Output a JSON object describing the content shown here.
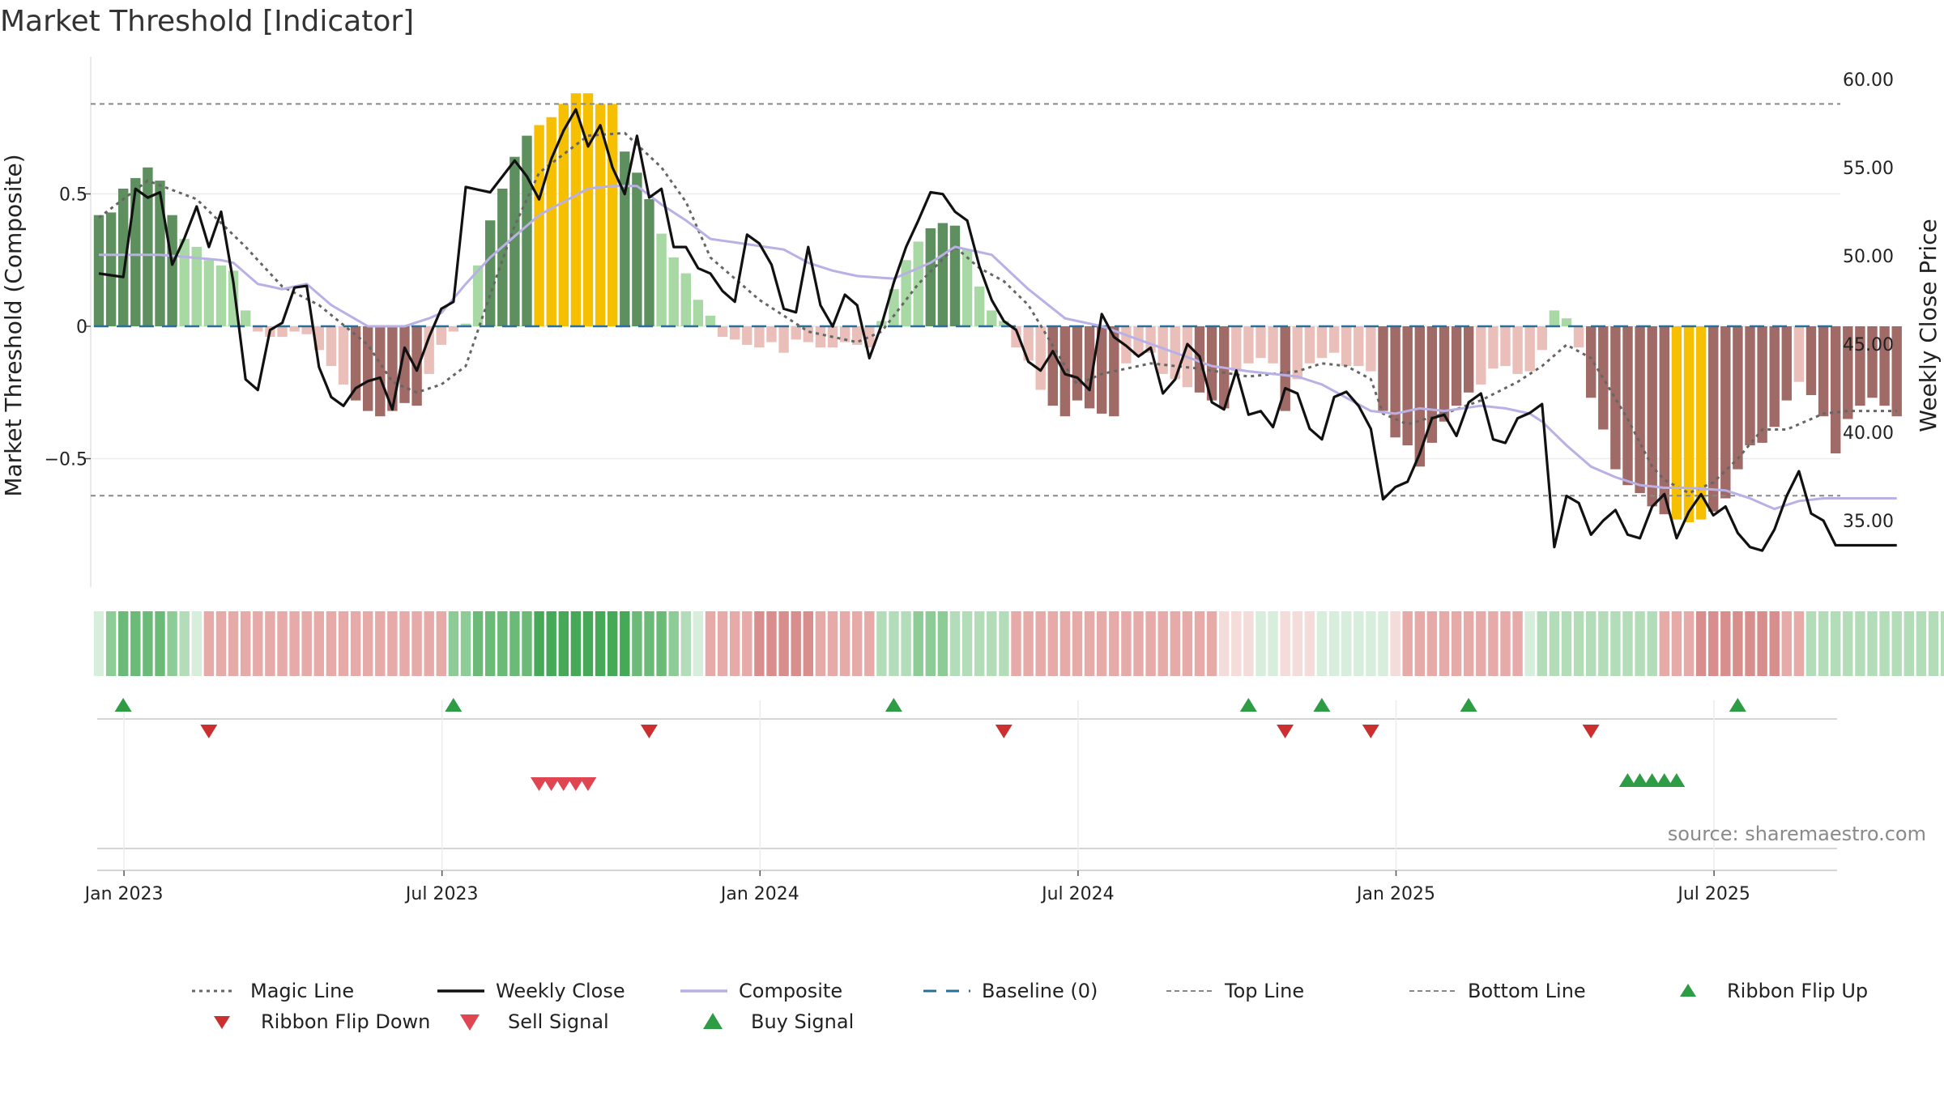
{
  "colors": {
    "weekly_close": "#111111",
    "magic_line": "#666666",
    "composite": "#b9b0e6",
    "baseline": "#2a6f97",
    "top_bottom": "#888888",
    "bar_pos_strong": "#5e8f5e",
    "bar_pos_weak": "#a8d8a3",
    "bar_neg_strong": "#a06a66",
    "bar_neg_weak": "#ebbfb9",
    "bar_extreme": "#f6c000",
    "ribbon_green": "#45a957",
    "ribbon_red": "#d36a69",
    "buy": "#2e9b45",
    "sell": "#d23a3e",
    "flip_down": "#cc2f2f"
  },
  "chart_data": {
    "type": "line",
    "title": "Market Threshold [Indicator]",
    "ylabel_left": "Market Threshold (Composite)",
    "ylabel_right": "Weekly Close Price",
    "left_yticks": [
      {
        "value": 0.5,
        "label": "0.5"
      },
      {
        "value": 0,
        "label": "0"
      },
      {
        "value": -0.5,
        "label": "−0.5"
      }
    ],
    "right_yticks": [
      {
        "value": 60,
        "label": "60.00"
      },
      {
        "value": 55,
        "label": "55.00"
      },
      {
        "value": 50,
        "label": "50.00"
      },
      {
        "value": 45,
        "label": "45.00"
      },
      {
        "value": 40,
        "label": "40.00"
      },
      {
        "value": 35,
        "label": "35.00"
      }
    ],
    "xticks": [
      {
        "week": 1,
        "label": "Jan 2023"
      },
      {
        "week": 27,
        "label": "Jul 2023"
      },
      {
        "week": 53,
        "label": "Jan 2024"
      },
      {
        "week": 79,
        "label": "Jul 2024"
      },
      {
        "week": 105,
        "label": "Jan 2025"
      },
      {
        "week": 131,
        "label": "Jul 2025"
      }
    ],
    "ylim_left": [
      -0.98,
      0.98
    ],
    "ylim_right": [
      29,
      61
    ],
    "top_line": 0.84,
    "bottom_line": -0.64,
    "baseline": 0,
    "weekly_close_keys": [
      [
        0,
        49.0
      ],
      [
        2,
        48.8
      ],
      [
        3,
        53.8
      ],
      [
        4,
        53.3
      ],
      [
        5,
        53.6
      ],
      [
        6,
        49.5
      ],
      [
        7,
        51.0
      ],
      [
        8,
        52.8
      ],
      [
        9,
        50.5
      ],
      [
        10,
        52.5
      ],
      [
        11,
        48.5
      ],
      [
        12,
        43.0
      ],
      [
        13,
        42.4
      ],
      [
        14,
        45.8
      ],
      [
        15,
        46.2
      ],
      [
        16,
        48.2
      ],
      [
        17,
        48.3
      ],
      [
        18,
        43.7
      ],
      [
        19,
        42.0
      ],
      [
        20,
        41.5
      ],
      [
        21,
        42.5
      ],
      [
        22,
        42.9
      ],
      [
        23,
        43.1
      ],
      [
        24,
        41.3
      ],
      [
        25,
        44.8
      ],
      [
        26,
        43.5
      ],
      [
        27,
        45.4
      ],
      [
        28,
        47.0
      ],
      [
        29,
        47.4
      ],
      [
        30,
        53.9
      ],
      [
        32,
        53.6
      ],
      [
        33,
        54.5
      ],
      [
        34,
        55.4
      ],
      [
        35,
        54.5
      ],
      [
        36,
        53.2
      ],
      [
        37,
        55.5
      ],
      [
        38,
        57.1
      ],
      [
        39,
        58.3
      ],
      [
        40,
        56.2
      ],
      [
        41,
        57.4
      ],
      [
        42,
        55.0
      ],
      [
        43,
        53.5
      ],
      [
        44,
        56.8
      ],
      [
        45,
        53.3
      ],
      [
        46,
        53.8
      ],
      [
        47,
        50.5
      ],
      [
        48,
        50.5
      ],
      [
        49,
        49.3
      ],
      [
        50,
        49.0
      ],
      [
        51,
        48.0
      ],
      [
        52,
        47.4
      ],
      [
        53,
        51.2
      ],
      [
        54,
        50.7
      ],
      [
        55,
        49.5
      ],
      [
        56,
        47.0
      ],
      [
        57,
        46.8
      ],
      [
        58,
        50.5
      ],
      [
        59,
        47.2
      ],
      [
        60,
        46.0
      ],
      [
        61,
        47.8
      ],
      [
        62,
        47.2
      ],
      [
        63,
        44.2
      ],
      [
        64,
        46.1
      ],
      [
        65,
        48.5
      ],
      [
        66,
        50.5
      ],
      [
        67,
        52.0
      ],
      [
        68,
        53.6
      ],
      [
        69,
        53.5
      ],
      [
        70,
        52.5
      ],
      [
        71,
        52.0
      ],
      [
        72,
        49.4
      ],
      [
        73,
        47.5
      ],
      [
        74,
        46.3
      ],
      [
        75,
        45.8
      ],
      [
        76,
        44.0
      ],
      [
        77,
        43.5
      ],
      [
        78,
        44.6
      ],
      [
        79,
        43.3
      ],
      [
        80,
        43.1
      ],
      [
        81,
        42.4
      ],
      [
        82,
        46.7
      ],
      [
        83,
        45.4
      ],
      [
        84,
        44.9
      ],
      [
        85,
        44.3
      ],
      [
        86,
        44.8
      ],
      [
        87,
        42.2
      ],
      [
        88,
        43.0
      ],
      [
        89,
        45.0
      ],
      [
        90,
        44.3
      ],
      [
        91,
        41.7
      ],
      [
        92,
        41.3
      ],
      [
        93,
        43.5
      ],
      [
        94,
        41.0
      ],
      [
        95,
        41.2
      ],
      [
        96,
        40.3
      ],
      [
        97,
        42.5
      ],
      [
        98,
        42.2
      ],
      [
        99,
        40.2
      ],
      [
        100,
        39.6
      ],
      [
        101,
        42.0
      ],
      [
        102,
        42.3
      ],
      [
        103,
        41.5
      ],
      [
        104,
        40.2
      ],
      [
        105,
        36.2
      ],
      [
        106,
        36.9
      ],
      [
        107,
        37.2
      ],
      [
        108,
        38.8
      ],
      [
        109,
        40.8
      ],
      [
        110,
        41.0
      ],
      [
        111,
        39.8
      ],
      [
        112,
        41.7
      ],
      [
        113,
        42.2
      ],
      [
        114,
        39.6
      ],
      [
        115,
        39.4
      ],
      [
        116,
        40.8
      ],
      [
        117,
        41.1
      ],
      [
        118,
        41.6
      ],
      [
        119,
        33.5
      ],
      [
        120,
        36.4
      ],
      [
        121,
        36.0
      ],
      [
        122,
        34.2
      ],
      [
        123,
        35.0
      ],
      [
        124,
        35.6
      ],
      [
        125,
        34.2
      ],
      [
        126,
        34.0
      ],
      [
        127,
        35.8
      ],
      [
        128,
        36.5
      ],
      [
        129,
        34.0
      ],
      [
        130,
        35.5
      ],
      [
        131,
        36.5
      ],
      [
        132,
        35.3
      ],
      [
        133,
        35.8
      ],
      [
        134,
        34.3
      ],
      [
        135,
        33.5
      ],
      [
        136,
        33.3
      ],
      [
        137,
        34.5
      ],
      [
        138,
        36.4
      ],
      [
        139,
        37.8
      ],
      [
        140,
        35.4
      ],
      [
        141,
        35.0
      ],
      [
        142,
        33.6
      ]
    ],
    "magic_line_keys": [
      [
        0,
        0.41
      ],
      [
        4,
        0.55
      ],
      [
        8,
        0.48
      ],
      [
        12,
        0.3
      ],
      [
        15,
        0.15
      ],
      [
        18,
        0.08
      ],
      [
        22,
        -0.07
      ],
      [
        24,
        -0.21
      ],
      [
        26,
        -0.25
      ],
      [
        28,
        -0.22
      ],
      [
        30,
        -0.15
      ],
      [
        32,
        0.12
      ],
      [
        34,
        0.38
      ],
      [
        36,
        0.58
      ],
      [
        40,
        0.72
      ],
      [
        43,
        0.73
      ],
      [
        46,
        0.6
      ],
      [
        48,
        0.47
      ],
      [
        50,
        0.26
      ],
      [
        54,
        0.1
      ],
      [
        58,
        -0.02
      ],
      [
        62,
        -0.06
      ],
      [
        64,
        -0.02
      ],
      [
        67,
        0.16
      ],
      [
        70,
        0.3
      ],
      [
        72,
        0.22
      ],
      [
        74,
        0.17
      ],
      [
        76,
        0.08
      ],
      [
        79,
        -0.15
      ],
      [
        80,
        -0.22
      ],
      [
        82,
        -0.18
      ],
      [
        86,
        -0.14
      ],
      [
        90,
        -0.16
      ],
      [
        94,
        -0.19
      ],
      [
        98,
        -0.17
      ],
      [
        100,
        -0.14
      ],
      [
        102,
        -0.15
      ],
      [
        104,
        -0.2
      ],
      [
        105,
        -0.33
      ],
      [
        107,
        -0.37
      ],
      [
        110,
        -0.33
      ],
      [
        113,
        -0.28
      ],
      [
        116,
        -0.21
      ],
      [
        118,
        -0.15
      ],
      [
        120,
        -0.07
      ],
      [
        122,
        -0.12
      ],
      [
        125,
        -0.35
      ],
      [
        127,
        -0.53
      ],
      [
        128,
        -0.58
      ],
      [
        130,
        -0.63
      ],
      [
        132,
        -0.59
      ],
      [
        134,
        -0.5
      ],
      [
        136,
        -0.39
      ],
      [
        138,
        -0.39
      ],
      [
        141,
        -0.33
      ],
      [
        143,
        -0.32
      ]
    ],
    "composite_keys": [
      [
        0,
        0.27
      ],
      [
        5,
        0.27
      ],
      [
        10,
        0.25
      ],
      [
        11,
        0.24
      ],
      [
        13,
        0.16
      ],
      [
        15,
        0.14
      ],
      [
        17,
        0.16
      ],
      [
        19,
        0.08
      ],
      [
        22,
        0.0
      ],
      [
        25,
        0.0
      ],
      [
        27,
        0.03
      ],
      [
        28,
        0.05
      ],
      [
        30,
        0.16
      ],
      [
        32,
        0.26
      ],
      [
        34,
        0.34
      ],
      [
        36,
        0.42
      ],
      [
        38,
        0.47
      ],
      [
        40,
        0.52
      ],
      [
        42,
        0.53
      ],
      [
        44,
        0.53
      ],
      [
        46,
        0.46
      ],
      [
        48,
        0.4
      ],
      [
        50,
        0.33
      ],
      [
        53,
        0.31
      ],
      [
        56,
        0.29
      ],
      [
        58,
        0.24
      ],
      [
        60,
        0.21
      ],
      [
        62,
        0.19
      ],
      [
        65,
        0.18
      ],
      [
        68,
        0.24
      ],
      [
        70,
        0.3
      ],
      [
        73,
        0.27
      ],
      [
        76,
        0.14
      ],
      [
        79,
        0.03
      ],
      [
        82,
        0.0
      ],
      [
        85,
        -0.05
      ],
      [
        88,
        -0.1
      ],
      [
        91,
        -0.15
      ],
      [
        94,
        -0.17
      ],
      [
        98,
        -0.19
      ],
      [
        100,
        -0.22
      ],
      [
        102,
        -0.27
      ],
      [
        104,
        -0.32
      ],
      [
        106,
        -0.33
      ],
      [
        108,
        -0.31
      ],
      [
        110,
        -0.32
      ],
      [
        113,
        -0.3
      ],
      [
        115,
        -0.31
      ],
      [
        117,
        -0.33
      ],
      [
        118,
        -0.36
      ],
      [
        120,
        -0.45
      ],
      [
        122,
        -0.53
      ],
      [
        124,
        -0.57
      ],
      [
        126,
        -0.6
      ],
      [
        128,
        -0.61
      ],
      [
        130,
        -0.61
      ],
      [
        133,
        -0.62
      ],
      [
        135,
        -0.65
      ],
      [
        137,
        -0.69
      ],
      [
        139,
        -0.66
      ],
      [
        141,
        -0.65
      ],
      [
        143,
        -0.65
      ]
    ],
    "composite_bars": [
      0.42,
      0.43,
      0.52,
      0.56,
      0.6,
      0.55,
      0.42,
      0.33,
      0.3,
      0.25,
      0.23,
      0.21,
      0.06,
      -0.02,
      -0.04,
      -0.04,
      -0.02,
      -0.03,
      -0.09,
      -0.15,
      -0.22,
      -0.28,
      -0.32,
      -0.34,
      -0.32,
      -0.29,
      -0.3,
      -0.18,
      -0.07,
      -0.02,
      0.01,
      0.23,
      0.4,
      0.52,
      0.64,
      0.72,
      0.76,
      0.79,
      0.84,
      0.88,
      0.88,
      0.84,
      0.84,
      0.66,
      0.58,
      0.48,
      0.35,
      0.26,
      0.2,
      0.1,
      0.04,
      -0.04,
      -0.05,
      -0.07,
      -0.08,
      -0.06,
      -0.1,
      -0.05,
      -0.06,
      -0.08,
      -0.08,
      -0.06,
      -0.07,
      -0.08,
      0.02,
      0.14,
      0.25,
      0.32,
      0.37,
      0.39,
      0.38,
      0.29,
      0.15,
      0.06,
      0.02,
      -0.08,
      -0.13,
      -0.24,
      -0.3,
      -0.34,
      -0.28,
      -0.31,
      -0.33,
      -0.34,
      -0.14,
      -0.11,
      -0.1,
      -0.18,
      -0.2,
      -0.23,
      -0.25,
      -0.28,
      -0.31,
      -0.17,
      -0.14,
      -0.12,
      -0.14,
      -0.32,
      -0.2,
      -0.14,
      -0.12,
      -0.1,
      -0.15,
      -0.15,
      -0.17,
      -0.32,
      -0.42,
      -0.45,
      -0.53,
      -0.44,
      -0.36,
      -0.3,
      -0.25,
      -0.22,
      -0.16,
      -0.15,
      -0.18,
      -0.17,
      -0.09,
      0.06,
      0.03,
      -0.08,
      -0.27,
      -0.39,
      -0.54,
      -0.6,
      -0.63,
      -0.68,
      -0.71,
      -0.73,
      -0.74,
      -0.73,
      -0.7,
      -0.65,
      -0.54,
      -0.45,
      -0.44,
      -0.38,
      -0.28,
      -0.21,
      -0.26,
      -0.34,
      -0.48,
      -0.35,
      -0.3,
      -0.27,
      -0.3,
      -0.34
    ],
    "ribbon": [
      1,
      3,
      4,
      4,
      4,
      4,
      3,
      2,
      1,
      -2,
      -2,
      -2,
      -2,
      -2,
      -2,
      -2,
      -2,
      -2,
      -2,
      -2,
      -2,
      -2,
      -2,
      -2,
      -2,
      -2,
      -2,
      -2,
      -2,
      3,
      3,
      4,
      4,
      4,
      4,
      4,
      5,
      5,
      5,
      5,
      5,
      5,
      5,
      5,
      4,
      4,
      4,
      3,
      2,
      1,
      -2,
      -2,
      -2,
      -2,
      -3,
      -3,
      -3,
      -3,
      -3,
      -2,
      -2,
      -2,
      -2,
      -2,
      2,
      2,
      2,
      3,
      3,
      3,
      2,
      2,
      2,
      2,
      2,
      -2,
      -2,
      -2,
      -2,
      -2,
      -2,
      -2,
      -2,
      -2,
      -2,
      -2,
      -2,
      -2,
      -2,
      -2,
      -2,
      -2,
      -1,
      -1,
      -1,
      1,
      1,
      -1,
      -1,
      -1,
      1,
      1,
      1,
      1,
      1,
      1,
      -1,
      -2,
      -2,
      -2,
      -2,
      -2,
      -2,
      -2,
      -2,
      -2,
      -2,
      1,
      2,
      2,
      2,
      2,
      2,
      2,
      2,
      2,
      2,
      2,
      -2,
      -2,
      -2,
      -3,
      -3,
      -3,
      -3,
      -3,
      -3,
      -3,
      -2,
      -2,
      2,
      2,
      2,
      2,
      2,
      2,
      2,
      2,
      2,
      2,
      2,
      2
    ],
    "ribbon_flip_up": [
      1,
      28,
      64,
      93,
      99,
      111,
      133
    ],
    "ribbon_flip_down": [
      8,
      44,
      73,
      96,
      103,
      121
    ],
    "sell_signals": [
      35,
      36,
      37,
      38,
      39
    ],
    "buy_signals": [
      124,
      125,
      126,
      127,
      128
    ],
    "legend_items": [
      {
        "key": "magic",
        "label": "Magic Line"
      },
      {
        "key": "close",
        "label": "Weekly Close"
      },
      {
        "key": "composite",
        "label": "Composite"
      },
      {
        "key": "baseline",
        "label": "Baseline (0)"
      },
      {
        "key": "top",
        "label": "Top Line"
      },
      {
        "key": "bottom",
        "label": "Bottom Line"
      },
      {
        "key": "flipup",
        "label": "Ribbon Flip Up"
      },
      {
        "key": "flipdown",
        "label": "Ribbon Flip Down"
      },
      {
        "key": "sell",
        "label": "Sell Signal"
      },
      {
        "key": "buy",
        "label": "Buy Signal"
      }
    ],
    "legend_placement": "bottom",
    "grid": true
  },
  "source_text": "source: sharemaestro.com"
}
